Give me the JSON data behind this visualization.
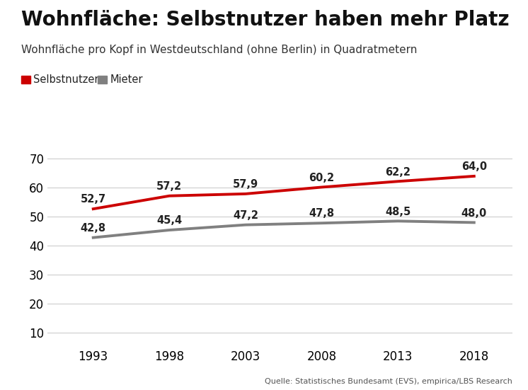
{
  "title": "Wohnfläche: Selbstnutzer haben mehr Platz",
  "subtitle": "Wohnfläche pro Kopf in Westdeutschland (ohne Berlin) in Quadratmetern",
  "source": "Quelle: Statistisches Bundesamt (EVS), empirica/LBS Research",
  "years": [
    1993,
    1998,
    2003,
    2008,
    2013,
    2018
  ],
  "selbstnutzer": [
    52.7,
    57.2,
    57.9,
    60.2,
    62.2,
    64.0
  ],
  "mieter": [
    42.8,
    45.4,
    47.2,
    47.8,
    48.5,
    48.0
  ],
  "selbstnutzer_color": "#cc0000",
  "mieter_color": "#808080",
  "line_width": 2.8,
  "legend_selbstnutzer": "Selbstnutzer",
  "legend_mieter": "Mieter",
  "ylim": [
    5,
    75
  ],
  "yticks": [
    10,
    20,
    30,
    40,
    50,
    60,
    70
  ],
  "background_color": "#ffffff",
  "grid_color": "#cccccc",
  "title_fontsize": 20,
  "subtitle_fontsize": 11,
  "label_fontsize": 10.5,
  "source_fontsize": 8
}
